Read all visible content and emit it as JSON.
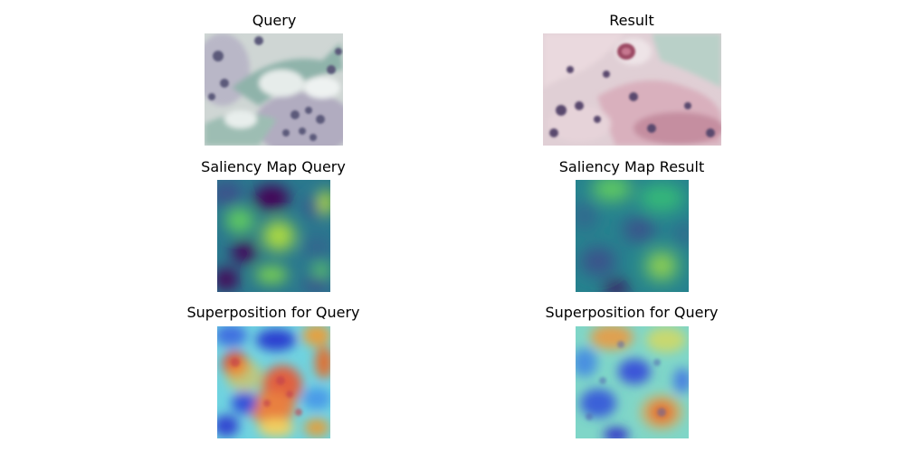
{
  "panels": [
    {
      "title": "Query"
    },
    {
      "title": "Result"
    },
    {
      "title": "Saliency Map Query"
    },
    {
      "title": "Saliency Map Result"
    },
    {
      "title": "Superposition for Query"
    },
    {
      "title": "Superposition for Query"
    }
  ]
}
